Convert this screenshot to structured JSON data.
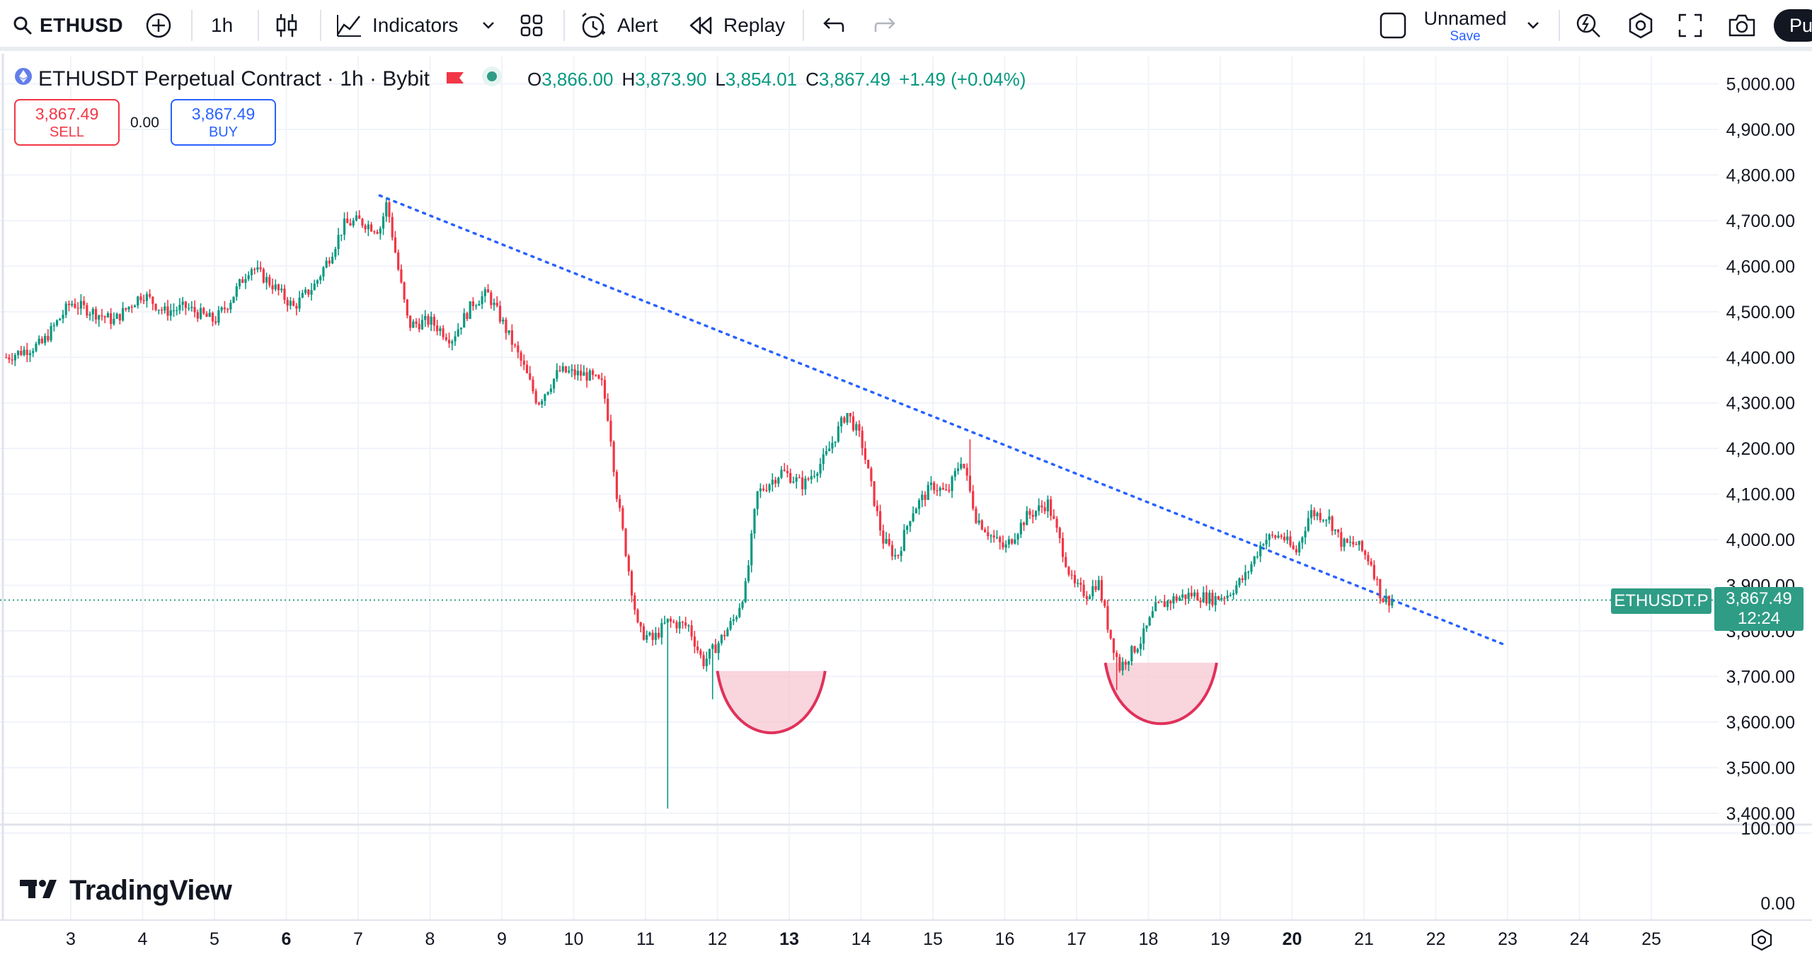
{
  "toolbar": {
    "symbol": "ETHUSD",
    "interval": "1h",
    "indicators_label": "Indicators",
    "alert_label": "Alert",
    "replay_label": "Replay",
    "layout_name": "Unnamed",
    "save_label": "Save",
    "publish_label": "Pu"
  },
  "legend": {
    "title": "ETHUSDT Perpetual Contract · 1h · Bybit",
    "open_key": "O",
    "open": "3,866.00",
    "high_key": "H",
    "high": "3,873.90",
    "low_key": "L",
    "low": "3,854.01",
    "close_key": "C",
    "close": "3,867.49",
    "change": "+1.49 (+0.04%)"
  },
  "trade": {
    "sell_price": "3,867.49",
    "sell_label": "SELL",
    "spread": "0.00",
    "buy_price": "3,867.49",
    "buy_label": "BUY"
  },
  "price_tag": {
    "symbol": "ETHUSDT.P",
    "price": "3,867.49",
    "countdown": "12:24"
  },
  "logo": {
    "text": "TradingView"
  },
  "colors": {
    "up": "#089981",
    "down": "#f23645",
    "trendline": "#2962ff",
    "cup_fill": "#f7c7d2",
    "cup_stroke": "#e0315a",
    "price_tag": "#2f9c86"
  },
  "icons": [
    "search-icon",
    "add-symbol-icon",
    "candles-icon",
    "indicators-icon",
    "templates-icon",
    "alert-icon",
    "replay-icon",
    "undo-icon",
    "redo-icon",
    "layout-square-icon",
    "chevron-down-icon",
    "quick-search-icon",
    "settings-icon",
    "fullscreen-icon",
    "camera-icon",
    "auto-scale-icon"
  ],
  "chart_data": {
    "type": "candlestick",
    "title": "ETHUSDT Perpetual Contract · 1h · Bybit",
    "y_ticks": [
      "5,000.00",
      "4,900.00",
      "4,800.00",
      "4,700.00",
      "4,600.00",
      "4,500.00",
      "4,400.00",
      "4,300.00",
      "4,200.00",
      "4,100.00",
      "4,000.00",
      "3,900.00",
      "3,800.00",
      "3,700.00",
      "3,600.00",
      "3,500.00",
      "3,400.00"
    ],
    "y_tick_values": [
      5000,
      4900,
      4800,
      4700,
      4600,
      4500,
      4400,
      4300,
      4200,
      4100,
      4000,
      3900,
      3800,
      3700,
      3600,
      3500,
      3400
    ],
    "ylim": [
      3380,
      5020
    ],
    "sub_y_ticks": [
      "100.00",
      "0.00"
    ],
    "x_ticks": [
      "3",
      "4",
      "5",
      "6",
      "7",
      "8",
      "9",
      "10",
      "11",
      "12",
      "13",
      "14",
      "15",
      "16",
      "17",
      "18",
      "19",
      "20",
      "21",
      "22",
      "23",
      "24",
      "25"
    ],
    "x_tick_days": [
      3,
      4,
      5,
      6,
      7,
      8,
      9,
      10,
      11,
      12,
      13,
      14,
      15,
      16,
      17,
      18,
      19,
      20,
      21,
      22,
      23,
      24,
      25
    ],
    "bold_ticks": [
      "6",
      "13",
      "20"
    ],
    "xlim_days": [
      3,
      25
    ],
    "price_path": [
      [
        2.1,
        4400
      ],
      [
        2.6,
        4430
      ],
      [
        3.0,
        4520
      ],
      [
        3.3,
        4500
      ],
      [
        3.6,
        4480
      ],
      [
        4.0,
        4540
      ],
      [
        4.3,
        4500
      ],
      [
        4.6,
        4510
      ],
      [
        5.0,
        4480
      ],
      [
        5.2,
        4520
      ],
      [
        5.5,
        4600
      ],
      [
        5.8,
        4560
      ],
      [
        6.1,
        4510
      ],
      [
        6.4,
        4560
      ],
      [
        6.6,
        4620
      ],
      [
        6.8,
        4690
      ],
      [
        7.0,
        4700
      ],
      [
        7.3,
        4680
      ],
      [
        7.4,
        4740
      ],
      [
        7.55,
        4600
      ],
      [
        7.7,
        4470
      ],
      [
        8.0,
        4480
      ],
      [
        8.3,
        4440
      ],
      [
        8.6,
        4520
      ],
      [
        8.8,
        4540
      ],
      [
        9.0,
        4480
      ],
      [
        9.3,
        4380
      ],
      [
        9.5,
        4300
      ],
      [
        9.8,
        4370
      ],
      [
        10.2,
        4360
      ],
      [
        10.4,
        4340
      ],
      [
        10.5,
        4250
      ],
      [
        10.6,
        4100
      ],
      [
        10.75,
        3950
      ],
      [
        10.9,
        3800
      ],
      [
        11.1,
        3780
      ],
      [
        11.3,
        3820
      ],
      [
        11.6,
        3810
      ],
      [
        11.8,
        3730
      ],
      [
        12.0,
        3770
      ],
      [
        12.25,
        3830
      ],
      [
        12.4,
        3900
      ],
      [
        12.55,
        4100
      ],
      [
        12.9,
        4150
      ],
      [
        13.2,
        4120
      ],
      [
        13.5,
        4180
      ],
      [
        13.8,
        4280
      ],
      [
        14.0,
        4220
      ],
      [
        14.3,
        4000
      ],
      [
        14.5,
        3960
      ],
      [
        14.7,
        4060
      ],
      [
        15.0,
        4120
      ],
      [
        15.2,
        4100
      ],
      [
        15.4,
        4180
      ],
      [
        15.6,
        4050
      ],
      [
        15.8,
        4010
      ],
      [
        16.0,
        3980
      ],
      [
        16.3,
        4050
      ],
      [
        16.6,
        4080
      ],
      [
        16.8,
        3980
      ],
      [
        16.95,
        3900
      ],
      [
        17.15,
        3880
      ],
      [
        17.3,
        3910
      ],
      [
        17.45,
        3800
      ],
      [
        17.6,
        3720
      ],
      [
        17.9,
        3780
      ],
      [
        18.1,
        3850
      ],
      [
        18.35,
        3870
      ],
      [
        18.6,
        3880
      ],
      [
        18.9,
        3870
      ],
      [
        19.1,
        3880
      ],
      [
        19.35,
        3920
      ],
      [
        19.6,
        4000
      ],
      [
        19.85,
        4010
      ],
      [
        20.05,
        3970
      ],
      [
        20.25,
        4060
      ],
      [
        20.5,
        4050
      ],
      [
        20.7,
        3990
      ],
      [
        20.9,
        3990
      ],
      [
        21.1,
        3950
      ],
      [
        21.25,
        3870
      ],
      [
        21.4,
        3867.49
      ]
    ],
    "wicks": [
      {
        "day": 11.3,
        "low": 3410
      },
      {
        "day": 11.95,
        "low": 3650
      },
      {
        "day": 17.55,
        "low": 3670
      },
      {
        "day": 7.4,
        "high": 4750
      },
      {
        "day": 15.5,
        "high": 4220
      }
    ],
    "last_price": 3867.49,
    "trendline": {
      "style": "dotted",
      "color": "#2962ff",
      "start": {
        "day": 7.3,
        "price": 4755
      },
      "end": {
        "day": 22.95,
        "price": 3770
      }
    },
    "cup_shapes": [
      {
        "left_day": 12.0,
        "right_day": 13.5,
        "top_price": 3712,
        "bottom_price": 3578
      },
      {
        "left_day": 17.4,
        "right_day": 18.95,
        "top_price": 3730,
        "bottom_price": 3598
      }
    ],
    "horizontal_line": {
      "price": 3867.49,
      "style": "dotted",
      "color": "#2f9c86"
    }
  }
}
